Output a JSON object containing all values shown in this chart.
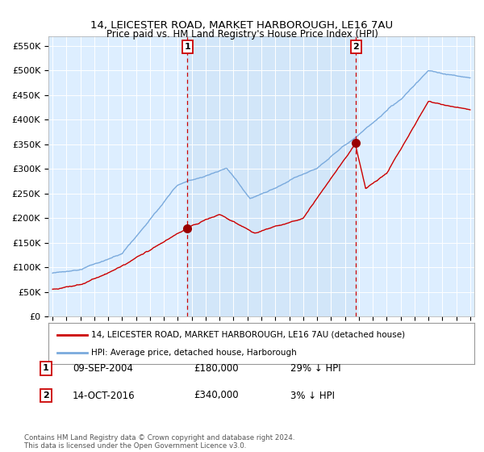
{
  "title": "14, LEICESTER ROAD, MARKET HARBOROUGH, LE16 7AU",
  "subtitle": "Price paid vs. HM Land Registry's House Price Index (HPI)",
  "ylim": [
    0,
    570000
  ],
  "yticks": [
    0,
    50000,
    100000,
    150000,
    200000,
    250000,
    300000,
    350000,
    400000,
    450000,
    500000,
    550000
  ],
  "ytick_labels": [
    "£0",
    "£50K",
    "£100K",
    "£150K",
    "£200K",
    "£250K",
    "£300K",
    "£350K",
    "£400K",
    "£450K",
    "£500K",
    "£550K"
  ],
  "bg_color": "#ddeeff",
  "shade_color": "#c8dff5",
  "legend_label_red": "14, LEICESTER ROAD, MARKET HARBOROUGH, LE16 7AU (detached house)",
  "legend_label_blue": "HPI: Average price, detached house, Harborough",
  "footer": "Contains HM Land Registry data © Crown copyright and database right 2024.\nThis data is licensed under the Open Government Licence v3.0.",
  "sale1_label": "1",
  "sale1_date": "09-SEP-2004",
  "sale1_price": "£180,000",
  "sale1_hpi": "29% ↓ HPI",
  "sale1_x": 2004.69,
  "sale1_y": 180000,
  "sale2_label": "2",
  "sale2_date": "14-OCT-2016",
  "sale2_price": "£340,000",
  "sale2_hpi": "3% ↓ HPI",
  "sale2_x": 2016.79,
  "sale2_y": 340000,
  "red_color": "#cc0000",
  "blue_color": "#7aaadd",
  "vline_color": "#cc0000",
  "marker_color": "#990000",
  "xlim_left": 1994.7,
  "xlim_right": 2025.3
}
